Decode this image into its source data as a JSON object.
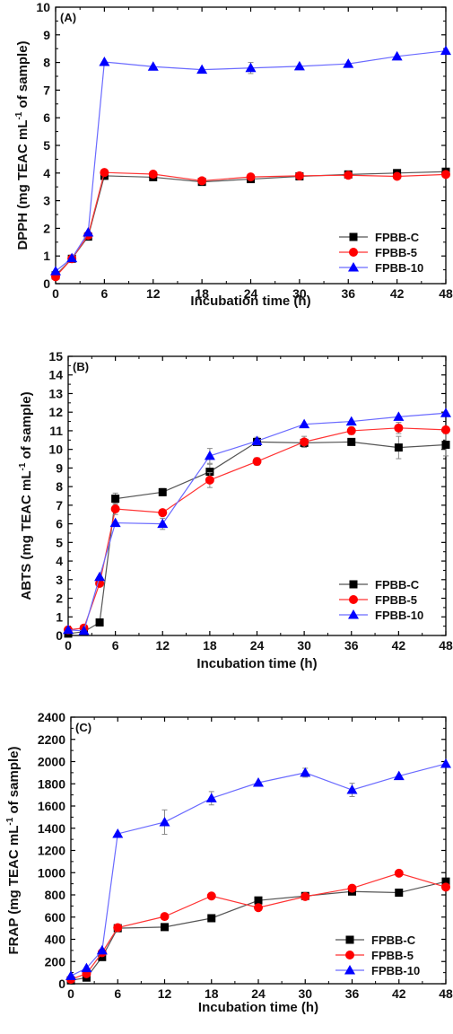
{
  "chart_data": [
    {
      "type": "line",
      "panel_label": "(A)",
      "xlabel": "Incubation time (h)",
      "ylabel_main": "DPPH (mg TEAC mL",
      "ylabel_sup": "-1",
      "ylabel_tail": " of sample)",
      "ylim": [
        0,
        10
      ],
      "yticks": [
        0,
        1,
        2,
        3,
        4,
        5,
        6,
        7,
        8,
        9,
        10
      ],
      "xlim": [
        0,
        48
      ],
      "xticks": [
        0,
        6,
        12,
        18,
        24,
        30,
        36,
        42,
        48
      ],
      "x": [
        0,
        2,
        4,
        6,
        12,
        18,
        24,
        30,
        36,
        42,
        48
      ],
      "legend_position": "bottom-right",
      "series": [
        {
          "name": "FPBB-C",
          "marker": "square",
          "color": "#000000",
          "line_color": "#555555",
          "values": [
            0.3,
            0.9,
            1.7,
            3.9,
            3.85,
            3.68,
            3.78,
            3.88,
            3.95,
            4.0,
            4.05
          ],
          "errors": [
            0,
            0,
            0,
            0,
            0,
            0,
            0,
            0,
            0,
            0,
            0
          ]
        },
        {
          "name": "FPBB-5",
          "marker": "circle",
          "color": "#ff0000",
          "line_color": "#ff3333",
          "values": [
            0.25,
            0.9,
            1.75,
            4.02,
            3.96,
            3.72,
            3.86,
            3.9,
            3.92,
            3.88,
            3.95
          ],
          "errors": [
            0,
            0,
            0,
            0,
            0,
            0,
            0,
            0,
            0,
            0,
            0
          ]
        },
        {
          "name": "FPBB-10",
          "marker": "triangle",
          "color": "#0000ff",
          "line_color": "#6a6aff",
          "values": [
            0.45,
            0.92,
            1.85,
            8.02,
            7.85,
            7.74,
            7.8,
            7.86,
            7.95,
            8.22,
            8.42
          ],
          "errors": [
            0,
            0,
            0,
            0,
            0,
            0,
            0.2,
            0,
            0,
            0,
            0
          ]
        }
      ]
    },
    {
      "type": "line",
      "panel_label": "(B)",
      "xlabel": "Incubation time (h)",
      "ylabel_main": "ABTS (mg TEAC mL",
      "ylabel_sup": "-1",
      "ylabel_tail": " of sample)",
      "ylim": [
        0,
        15
      ],
      "yticks": [
        0,
        1,
        2,
        3,
        4,
        5,
        6,
        7,
        8,
        9,
        10,
        11,
        12,
        13,
        14,
        15
      ],
      "xlim": [
        0,
        48
      ],
      "xticks": [
        0,
        6,
        12,
        18,
        24,
        30,
        36,
        42,
        48
      ],
      "x": [
        0,
        2,
        4,
        6,
        12,
        18,
        24,
        30,
        36,
        42,
        48
      ],
      "legend_position": "bottom-right",
      "series": [
        {
          "name": "FPBB-C",
          "marker": "square",
          "color": "#000000",
          "line_color": "#555555",
          "values": [
            0.1,
            0.2,
            0.7,
            7.35,
            7.7,
            8.8,
            10.4,
            10.35,
            10.4,
            10.1,
            10.25
          ],
          "errors": [
            0,
            0,
            0,
            0.3,
            0.2,
            0.4,
            0,
            0,
            0,
            0.6,
            0.6
          ]
        },
        {
          "name": "FPBB-5",
          "marker": "circle",
          "color": "#ff0000",
          "line_color": "#ff3333",
          "values": [
            0.3,
            0.4,
            2.8,
            6.8,
            6.6,
            8.35,
            9.35,
            10.4,
            11.0,
            11.15,
            11.05
          ],
          "errors": [
            0,
            0,
            0,
            0.3,
            0,
            0.4,
            0.2,
            0.3,
            0.2,
            0.3,
            0
          ]
        },
        {
          "name": "FPBB-10",
          "marker": "triangle",
          "color": "#0000ff",
          "line_color": "#6a6aff",
          "values": [
            0.3,
            0.25,
            3.15,
            6.05,
            6.0,
            9.65,
            10.45,
            11.35,
            11.5,
            11.75,
            11.95
          ],
          "errors": [
            0,
            0,
            0,
            0,
            0.3,
            0.4,
            0.2,
            0,
            0,
            0,
            0
          ]
        }
      ]
    },
    {
      "type": "line",
      "panel_label": "(C)",
      "xlabel": "Incubation time (h)",
      "ylabel_main": "FRAP (mg TEAC mL",
      "ylabel_sup": "-1",
      "ylabel_tail": " of sample)",
      "ylim": [
        0,
        2400
      ],
      "yticks": [
        0,
        200,
        400,
        600,
        800,
        1000,
        1200,
        1400,
        1600,
        1800,
        2000,
        2200,
        2400
      ],
      "xlim": [
        0,
        48
      ],
      "xticks": [
        0,
        6,
        12,
        18,
        24,
        30,
        36,
        42,
        48
      ],
      "x": [
        0,
        2,
        4,
        6,
        12,
        18,
        24,
        30,
        36,
        42,
        48
      ],
      "legend_position": "bottom-right",
      "series": [
        {
          "name": "FPBB-C",
          "marker": "square",
          "color": "#000000",
          "line_color": "#555555",
          "values": [
            30,
            55,
            240,
            500,
            510,
            590,
            750,
            790,
            830,
            820,
            920
          ],
          "errors": [
            0,
            0,
            0,
            0,
            0,
            0,
            0,
            0,
            0,
            0,
            0
          ]
        },
        {
          "name": "FPBB-5",
          "marker": "circle",
          "color": "#ff0000",
          "line_color": "#ff3333",
          "values": [
            40,
            90,
            280,
            505,
            605,
            790,
            685,
            785,
            860,
            995,
            870
          ],
          "errors": [
            0,
            0,
            0,
            0,
            0,
            0,
            0,
            0,
            0,
            0,
            0
          ]
        },
        {
          "name": "FPBB-10",
          "marker": "triangle",
          "color": "#0000ff",
          "line_color": "#6a6aff",
          "values": [
            70,
            140,
            300,
            1350,
            1455,
            1670,
            1810,
            1900,
            1745,
            1870,
            1980
          ],
          "errors": [
            0,
            0,
            0,
            0,
            110,
            60,
            0,
            40,
            60,
            0,
            0
          ]
        }
      ]
    }
  ]
}
